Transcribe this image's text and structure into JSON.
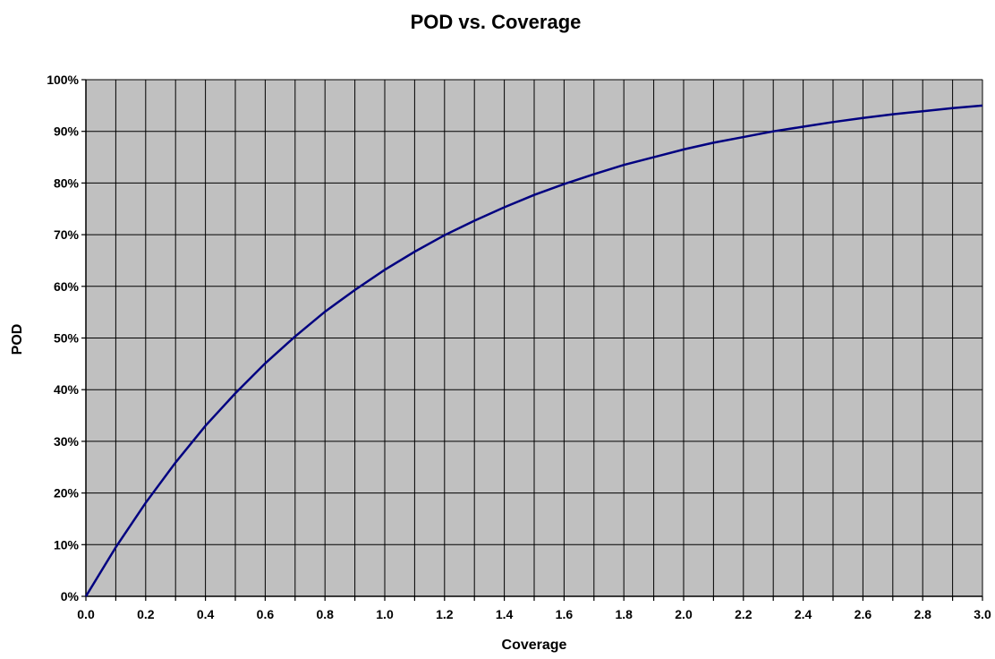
{
  "chart_data": {
    "type": "line",
    "title": "POD vs. Coverage",
    "xlabel": "Coverage",
    "ylabel": "POD",
    "xlim": [
      0,
      3.0
    ],
    "ylim": [
      0,
      100
    ],
    "x_ticks": [
      "0.0",
      "0.2",
      "0.4",
      "0.6",
      "0.8",
      "1.0",
      "1.2",
      "1.4",
      "1.6",
      "1.8",
      "2.0",
      "2.2",
      "2.4",
      "2.6",
      "2.8",
      "3.0"
    ],
    "y_ticks": [
      "0%",
      "10%",
      "20%",
      "30%",
      "40%",
      "50%",
      "60%",
      "70%",
      "80%",
      "90%",
      "100%"
    ],
    "x_minor_step": 0.1,
    "grid": true,
    "legend": "none",
    "plot_background": "#c0c0c0",
    "line_color": "#000080",
    "series": [
      {
        "x": [
          0.0,
          0.1,
          0.2,
          0.3,
          0.4,
          0.5,
          0.6,
          0.7,
          0.8,
          0.9,
          1.0,
          1.1,
          1.2,
          1.3,
          1.4,
          1.5,
          1.6,
          1.7,
          1.8,
          1.9,
          2.0,
          2.1,
          2.2,
          2.3,
          2.4,
          2.5,
          2.6,
          2.7,
          2.8,
          2.9,
          3.0
        ],
        "values": [
          0.0,
          9.5,
          18.1,
          25.9,
          33.0,
          39.3,
          45.1,
          50.3,
          55.1,
          59.3,
          63.2,
          66.7,
          69.9,
          72.7,
          75.3,
          77.7,
          79.8,
          81.7,
          83.5,
          85.0,
          86.5,
          87.8,
          88.9,
          90.0,
          90.9,
          91.8,
          92.6,
          93.3,
          93.9,
          94.5,
          95.0
        ]
      }
    ]
  }
}
